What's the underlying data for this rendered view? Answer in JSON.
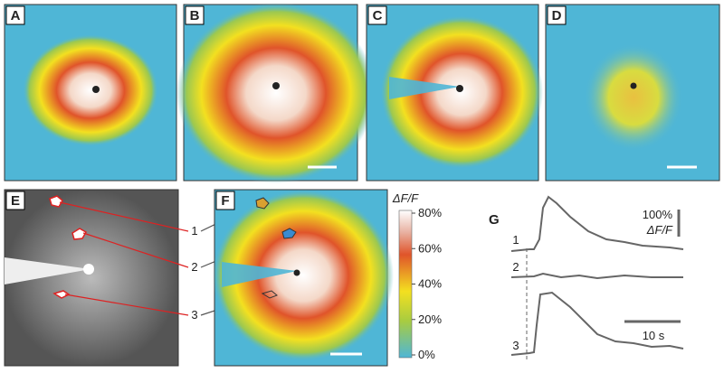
{
  "panels": {
    "a": "A",
    "b": "B",
    "c": "C",
    "d": "D",
    "e": "E",
    "f": "F",
    "g": "G"
  },
  "rois": [
    "1",
    "2",
    "3"
  ],
  "colorbar": {
    "title": "ΔF/F",
    "ticks": [
      "80%",
      "60%",
      "40%",
      "20%",
      "0%"
    ]
  },
  "traces": {
    "labels": [
      "1",
      "2",
      "3"
    ],
    "amplitude_scale": "100%",
    "amplitude_unit": "ΔF/F",
    "time_scale": "10 s"
  }
}
